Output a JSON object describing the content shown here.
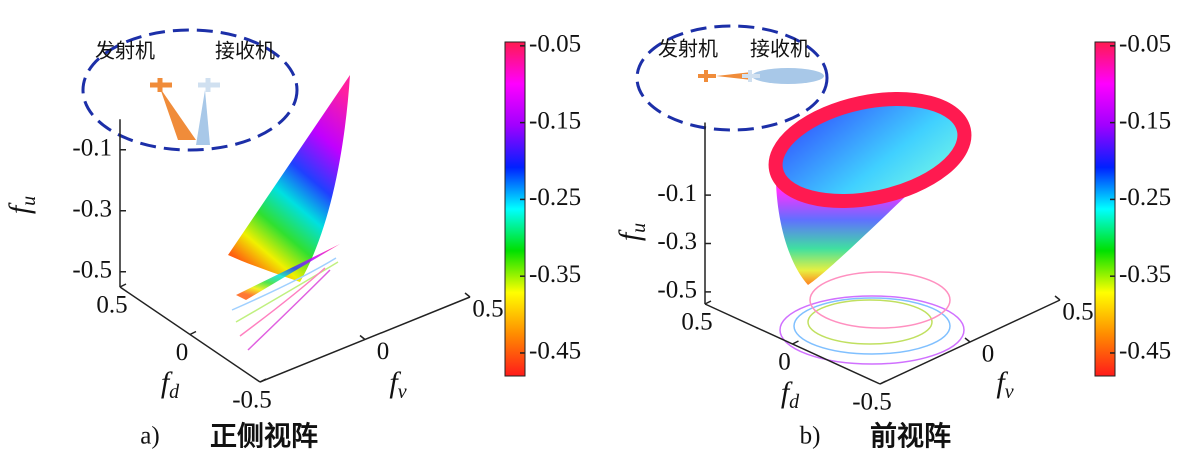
{
  "chart_data": [
    {
      "type": "surface3d",
      "panel_label": "a)",
      "caption": "正侧视阵",
      "transmitter_label": "发射机",
      "receiver_label": "接收机",
      "xlabel": {
        "base": "f",
        "sub": "d"
      },
      "ylabel": {
        "base": "f",
        "sub": "v"
      },
      "zlabel": {
        "base": "f",
        "sub": "u"
      },
      "xlim": [
        0.5,
        -0.5
      ],
      "xticks": [
        0.5,
        0,
        -0.5
      ],
      "ylim": [
        -0.5,
        0.5
      ],
      "yticks": [
        0,
        0.5
      ],
      "zlim": [
        -0.55,
        0
      ],
      "zticks": [
        -0.1,
        -0.3,
        -0.5
      ],
      "colorbar": {
        "clim": [
          -0.48,
          -0.045
        ],
        "ticks": [
          -0.05,
          -0.15,
          -0.25,
          -0.35,
          -0.45
        ],
        "colormap": [
          "#ff1a1a",
          "#ff8c00",
          "#ffff00",
          "#00e000",
          "#00ffff",
          "#0020ff",
          "#a000ff",
          "#ff00ff",
          "#ff1a50"
        ]
      }
    },
    {
      "type": "surface3d",
      "panel_label": "b)",
      "caption": "前视阵",
      "transmitter_label": "发射机",
      "receiver_label": "接收机",
      "xlabel": {
        "base": "f",
        "sub": "d"
      },
      "ylabel": {
        "base": "f",
        "sub": "v"
      },
      "zlabel": {
        "base": "f",
        "sub": "u"
      },
      "xlim": [
        0.5,
        -0.5
      ],
      "xticks": [
        0.5,
        0,
        -0.5
      ],
      "ylim": [
        -0.5,
        0.5
      ],
      "yticks": [
        0,
        0.5
      ],
      "zlim": [
        -0.55,
        0.2
      ],
      "zticks": [
        -0.1,
        -0.3,
        -0.5
      ],
      "colorbar": {
        "clim": [
          -0.48,
          -0.045
        ],
        "ticks": [
          -0.05,
          -0.15,
          -0.25,
          -0.35,
          -0.45
        ],
        "colormap": [
          "#ff1a1a",
          "#ff8c00",
          "#ffff00",
          "#00e000",
          "#00ffff",
          "#0020ff",
          "#a000ff",
          "#ff00ff",
          "#ff1a50"
        ]
      }
    }
  ]
}
